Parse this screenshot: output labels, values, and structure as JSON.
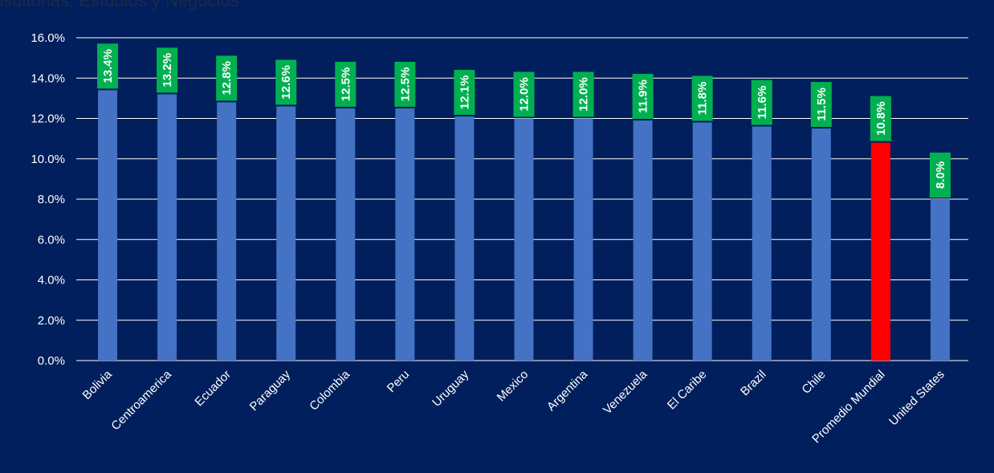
{
  "source_text": "nsultorias, Estudios y Negocios",
  "chart_data": {
    "type": "bar",
    "categories": [
      "Bolivia",
      "Centroamerica",
      "Ecuador",
      "Paraguay",
      "Colombia",
      "Peru",
      "Uruguay",
      "Mexico",
      "Argentina",
      "Venezuela",
      "El Caribe",
      "Brazil",
      "Chile",
      "Promedio Mundial",
      "United States"
    ],
    "values": [
      13.4,
      13.2,
      12.8,
      12.6,
      12.5,
      12.5,
      12.1,
      12.0,
      12.0,
      11.9,
      11.8,
      11.6,
      11.5,
      10.8,
      8.0
    ],
    "data_labels": [
      "13.4%",
      "13.2%",
      "12.8%",
      "12.6%",
      "12.5%",
      "12.5%",
      "12.1%",
      "12.0%",
      "12.0%",
      "11.9%",
      "11.8%",
      "11.6%",
      "11.5%",
      "10.8%",
      "8.0%"
    ],
    "yticks": [
      "0.0%",
      "2.0%",
      "4.0%",
      "6.0%",
      "8.0%",
      "10.0%",
      "12.0%",
      "14.0%",
      "16.0%"
    ],
    "ylim": [
      0,
      16
    ],
    "grid": true,
    "colors": {
      "bar": "#4472c4",
      "highlight": "#ff0000",
      "label_bg": "#00b050",
      "background": "#001f5c"
    },
    "highlight_category": "Promedio Mundial"
  }
}
